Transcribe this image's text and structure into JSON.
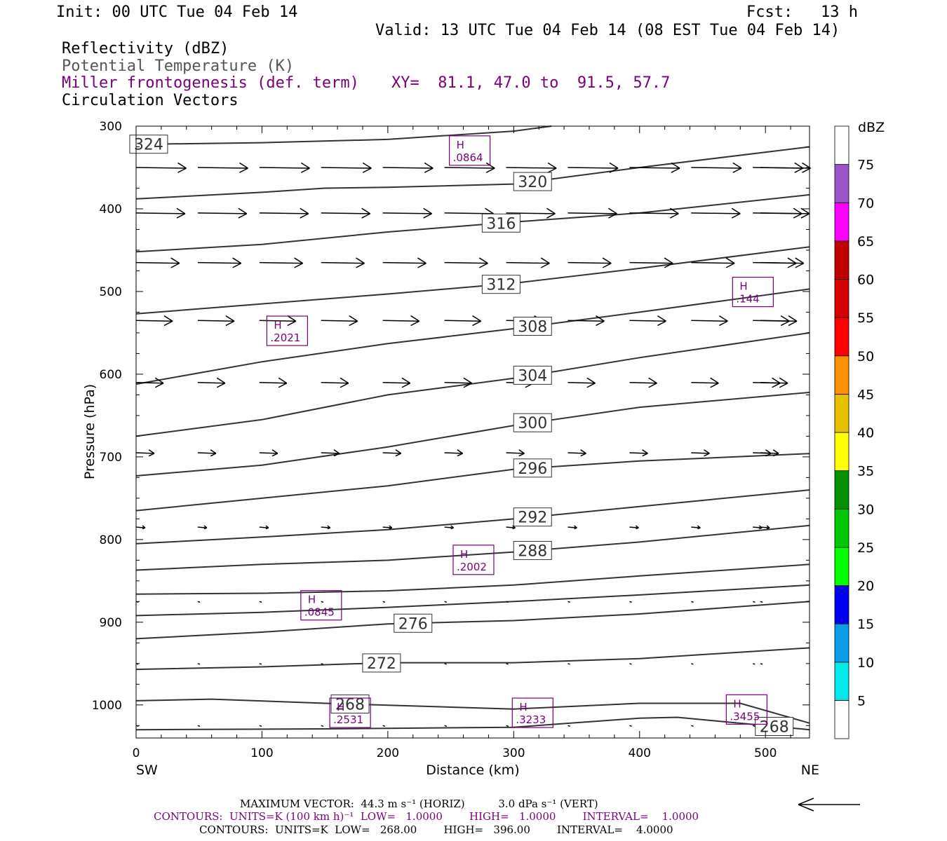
{
  "header": {
    "init": "Init: 00 UTC Tue 04 Feb 14",
    "fcst": "Fcst:   13 h",
    "valid": "Valid: 13 UTC Tue 04 Feb 14 (08 EST Tue 04 Feb 14)",
    "fields": [
      {
        "label": "Reflectivity (dBZ)",
        "color": "#000000"
      },
      {
        "label": "Potential Temperature (K)",
        "color": "#555555"
      },
      {
        "label": "Miller frontogenesis (def. term)",
        "color": "#7a007a"
      },
      {
        "label": "Circulation Vectors",
        "color": "#000000"
      }
    ],
    "xy": "XY=  81.1, 47.0 to  91.5, 57.7"
  },
  "chart_data": {
    "type": "line",
    "xlabel": "Distance (km)",
    "ylabel": "Pressure (hPa)",
    "xlim": [
      0,
      535
    ],
    "ylim": [
      300,
      1040
    ],
    "y_reversed": true,
    "x_ticks": [
      0,
      100,
      200,
      300,
      400,
      500
    ],
    "y_ticks": [
      300,
      400,
      500,
      600,
      700,
      800,
      900,
      1000
    ],
    "x_end_labels": {
      "left": "SW",
      "right": "NE"
    },
    "colorbar": {
      "unit": "dBZ",
      "levels": [
        5,
        10,
        15,
        20,
        25,
        30,
        35,
        40,
        45,
        50,
        55,
        60,
        65,
        70,
        75
      ],
      "colors": [
        "#ffffff",
        "#00e8e8",
        "#0a9ee8",
        "#0000f0",
        "#00ff00",
        "#00c800",
        "#009000",
        "#ffff00",
        "#e7c000",
        "#ff9000",
        "#ff0000",
        "#d60000",
        "#c00000",
        "#ff00ff",
        "#9a55c9",
        "#ffffff"
      ]
    },
    "theta_contours": [
      {
        "label": "324",
        "points": [
          [
            0,
            322
          ],
          [
            100,
            320
          ],
          [
            200,
            316
          ],
          [
            300,
            306
          ],
          [
            330,
            300
          ]
        ]
      },
      {
        "label": "320",
        "points": [
          [
            0,
            388
          ],
          [
            100,
            380
          ],
          [
            150,
            375
          ],
          [
            200,
            374
          ],
          [
            300,
            370
          ],
          [
            400,
            350
          ],
          [
            535,
            325
          ]
        ]
      },
      {
        "label": "316",
        "points": [
          [
            0,
            452
          ],
          [
            100,
            443
          ],
          [
            200,
            428
          ],
          [
            300,
            416
          ],
          [
            400,
            405
          ],
          [
            535,
            383
          ]
        ]
      },
      {
        "label": "312",
        "points": [
          [
            0,
            527
          ],
          [
            100,
            515
          ],
          [
            200,
            503
          ],
          [
            300,
            490
          ],
          [
            400,
            472
          ],
          [
            535,
            446
          ]
        ]
      },
      {
        "label": "308",
        "points": [
          [
            0,
            612
          ],
          [
            100,
            585
          ],
          [
            200,
            563
          ],
          [
            300,
            545
          ],
          [
            400,
            525
          ],
          [
            535,
            497
          ]
        ]
      },
      {
        "label": "304",
        "points": [
          [
            0,
            675
          ],
          [
            100,
            655
          ],
          [
            200,
            625
          ],
          [
            300,
            605
          ],
          [
            400,
            580
          ],
          [
            535,
            550
          ]
        ]
      },
      {
        "label": "300",
        "points": [
          [
            0,
            723
          ],
          [
            100,
            710
          ],
          [
            200,
            688
          ],
          [
            300,
            662
          ],
          [
            400,
            640
          ],
          [
            535,
            622
          ]
        ]
      },
      {
        "label": "296",
        "points": [
          [
            0,
            765
          ],
          [
            100,
            750
          ],
          [
            200,
            735
          ],
          [
            300,
            715
          ],
          [
            400,
            705
          ],
          [
            535,
            696
          ]
        ]
      },
      {
        "label": "292",
        "points": [
          [
            0,
            805
          ],
          [
            100,
            797
          ],
          [
            200,
            788
          ],
          [
            300,
            775
          ],
          [
            400,
            760
          ],
          [
            535,
            740
          ]
        ]
      },
      {
        "label": "288",
        "points": [
          [
            0,
            837
          ],
          [
            100,
            830
          ],
          [
            200,
            825
          ],
          [
            300,
            815
          ],
          [
            400,
            803
          ],
          [
            535,
            783
          ]
        ]
      },
      {
        "label": "",
        "points": [
          [
            0,
            866
          ],
          [
            100,
            865
          ],
          [
            200,
            862
          ],
          [
            300,
            855
          ],
          [
            400,
            844
          ],
          [
            535,
            830
          ]
        ]
      },
      {
        "label": "",
        "points": [
          [
            0,
            892
          ],
          [
            100,
            888
          ],
          [
            200,
            882
          ],
          [
            300,
            875
          ],
          [
            400,
            867
          ],
          [
            535,
            855
          ]
        ]
      },
      {
        "label": "276",
        "points": [
          [
            0,
            920
          ],
          [
            100,
            912
          ],
          [
            200,
            902
          ],
          [
            300,
            898
          ],
          [
            400,
            890
          ],
          [
            535,
            875
          ]
        ]
      },
      {
        "label": "272",
        "points": [
          [
            0,
            957
          ],
          [
            100,
            954
          ],
          [
            200,
            949
          ],
          [
            300,
            949
          ],
          [
            400,
            944
          ],
          [
            535,
            931
          ]
        ]
      },
      {
        "label": "268",
        "points": [
          [
            0,
            995
          ],
          [
            60,
            993
          ],
          [
            150,
            998
          ],
          [
            300,
            1005
          ],
          [
            400,
            998
          ],
          [
            480,
            998
          ],
          [
            535,
            1022
          ]
        ]
      },
      {
        "label": "268",
        "points": [
          [
            0,
            1030
          ],
          [
            150,
            1029
          ],
          [
            300,
            1027
          ],
          [
            400,
            1016
          ],
          [
            430,
            1015
          ],
          [
            535,
            1030
          ]
        ]
      }
    ],
    "frontogenesis_highs": [
      {
        "label": "H",
        "value": ".0864",
        "x": 250,
        "p": 327
      },
      {
        "label": "H",
        "value": ".2021",
        "x": 105,
        "p": 545
      },
      {
        "label": "H",
        "value": ".144",
        "x": 475,
        "p": 498
      },
      {
        "label": "H",
        "value": ".2002",
        "x": 253,
        "p": 822
      },
      {
        "label": "H",
        "value": ".0845",
        "x": 132,
        "p": 877
      },
      {
        "label": "H",
        "value": ".2531",
        "x": 155,
        "p": 1007
      },
      {
        "label": "H",
        "value": ".3233",
        "x": 300,
        "p": 1007
      },
      {
        "label": "H",
        "value": ".3455",
        "x": 470,
        "p": 1003
      }
    ],
    "circulation_vectors": {
      "x_positions": [
        0,
        49,
        98,
        147,
        196,
        245,
        294,
        343,
        392,
        441,
        490,
        535
      ],
      "rows": [
        {
          "p": 350,
          "u": [
            44,
            44,
            44,
            44,
            44,
            44,
            44,
            44,
            44,
            44,
            44,
            44
          ]
        },
        {
          "p": 405,
          "u": [
            43,
            43,
            43,
            43,
            43,
            43,
            43,
            43,
            43,
            43,
            43,
            43
          ]
        },
        {
          "p": 465,
          "u": [
            38,
            38,
            38,
            38,
            38,
            38,
            38,
            38,
            38,
            38,
            38,
            38
          ]
        },
        {
          "p": 535,
          "u": [
            32,
            32,
            32,
            32,
            32,
            32,
            32,
            32,
            32,
            32,
            32,
            32
          ]
        },
        {
          "p": 610,
          "u": [
            24,
            24,
            24,
            24,
            24,
            24,
            24,
            24,
            24,
            24,
            24,
            24
          ]
        },
        {
          "p": 695,
          "u": [
            16,
            16,
            16,
            16,
            16,
            16,
            16,
            16,
            16,
            16,
            16,
            16
          ]
        },
        {
          "p": 785,
          "u": [
            8,
            8,
            8,
            8,
            8,
            8,
            8,
            8,
            8,
            8,
            8,
            8
          ]
        },
        {
          "p": 875,
          "u": [
            2,
            2,
            2,
            2,
            2,
            2,
            2,
            2,
            2,
            2,
            2,
            2
          ]
        },
        {
          "p": 950,
          "u": [
            1,
            1,
            1,
            1,
            1,
            1,
            1,
            1,
            1,
            1,
            1,
            1
          ]
        },
        {
          "p": 1025,
          "u": [
            2,
            2,
            2,
            2,
            2,
            2,
            2,
            2,
            2,
            2,
            2,
            2
          ]
        }
      ]
    }
  },
  "footer": {
    "max_vector": "MAXIMUM VECTOR:  44.3 m s⁻¹ (HORIZ)          3.0 dPa s⁻¹ (VERT)",
    "contours_purple": "CONTOURS:  UNITS=K (100 km h)⁻¹  LOW=   1.0000        HIGH=   1.0000        INTERVAL=    1.0000",
    "contours_black": "CONTOURS:  UNITS=K  LOW=   268.00        HIGH=   396.00        INTERVAL=    4.0000"
  }
}
